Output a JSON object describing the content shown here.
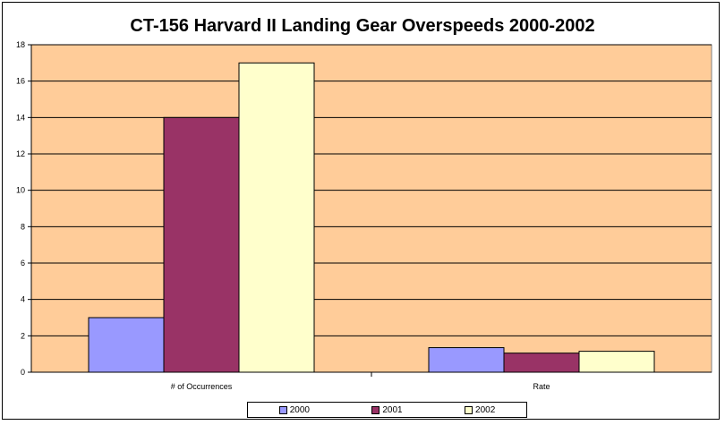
{
  "chart_data": {
    "type": "bar",
    "title": "CT-156 Harvard II Landing Gear Overspeeds 2000-2002",
    "categories": [
      "# of Occurrences",
      "Rate"
    ],
    "series": [
      {
        "name": "2000",
        "values": [
          3,
          1.35
        ],
        "color": "#9999FF"
      },
      {
        "name": "2001",
        "values": [
          14,
          1.05
        ],
        "color": "#993366"
      },
      {
        "name": "2002",
        "values": [
          17,
          1.15
        ],
        "color": "#FFFFCC"
      }
    ],
    "ylim": [
      0,
      18
    ],
    "yticks": [
      "0",
      "2",
      "4",
      "6",
      "8",
      "10",
      "12",
      "14",
      "16",
      "18"
    ],
    "grid": true,
    "legend_position": "bottom",
    "plot_background": "#FFCC99"
  }
}
